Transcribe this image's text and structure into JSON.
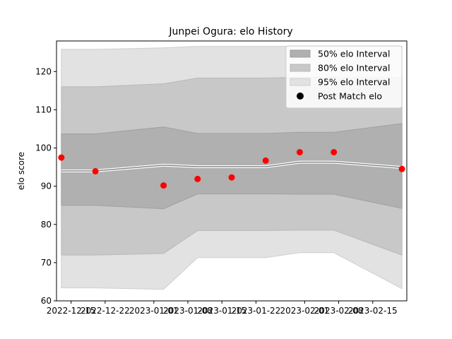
{
  "chart_data": {
    "type": "line",
    "title": "Junpei Ogura: elo History",
    "xlabel": "",
    "ylabel": "elo score",
    "x_ticks": [
      "2022-12-15",
      "2022-12-22",
      "2023-01-01",
      "2023-01-08",
      "2023-01-15",
      "2023-01-22",
      "2023-02-01",
      "2023-02-08",
      "2023-02-15"
    ],
    "x_tick_dates": [
      "2022-12-15",
      "2022-12-22",
      "2023-01-01",
      "2023-01-08",
      "2023-01-15",
      "2023-01-22",
      "2023-02-01",
      "2023-02-08",
      "2023-02-15"
    ],
    "xlim": [
      "2022-12-12",
      "2023-02-22"
    ],
    "ylim": [
      60,
      128
    ],
    "y_ticks": [
      60,
      70,
      80,
      90,
      100,
      110,
      120
    ],
    "grid": false,
    "legend_position": "top-right",
    "legend": [
      "50% elo Interval",
      "80% elo Interval",
      "95% elo Interval",
      "Post Match elo"
    ],
    "colors": {
      "band_50": "#b0b0b0",
      "band_80": "#c8c8c8",
      "band_95": "#e2e2e2",
      "mean_line": "#888888",
      "points": "#ff0000"
    },
    "x": [
      "2022-12-13",
      "2022-12-20",
      "2023-01-03",
      "2023-01-10",
      "2023-01-17",
      "2023-01-24",
      "2023-01-31",
      "2023-02-07",
      "2023-02-21"
    ],
    "mean": [
      94.0,
      94.0,
      95.5,
      95.1,
      95.1,
      95.1,
      96.3,
      96.3,
      94.9
    ],
    "band_50": {
      "lower": [
        85.0,
        85.0,
        84.1,
        88.0,
        88.0,
        88.0,
        87.9,
        87.9,
        84.2
      ],
      "upper": [
        103.7,
        103.7,
        105.5,
        103.8,
        103.8,
        103.8,
        104.1,
        104.1,
        106.4
      ]
    },
    "band_80": {
      "lower": [
        72.0,
        72.0,
        72.4,
        78.4,
        78.4,
        78.4,
        78.5,
        78.5,
        72.0
      ],
      "upper": [
        116.0,
        116.0,
        116.8,
        118.3,
        118.3,
        118.3,
        118.5,
        118.5,
        118.5
      ]
    },
    "band_95": {
      "lower": [
        63.4,
        63.4,
        63.0,
        71.3,
        71.3,
        71.3,
        72.6,
        72.6,
        63.2
      ],
      "upper": [
        125.8,
        125.8,
        126.2,
        126.6,
        126.6,
        126.6,
        126.6,
        126.6,
        126.6
      ]
    },
    "series": [
      {
        "name": "Post Match elo",
        "x": [
          "2022-12-13",
          "2022-12-20",
          "2023-01-03",
          "2023-01-10",
          "2023-01-17",
          "2023-01-24",
          "2023-01-31",
          "2023-02-07",
          "2023-02-21"
        ],
        "values": [
          97.5,
          93.9,
          90.2,
          91.9,
          92.3,
          96.7,
          98.9,
          98.9,
          94.5
        ]
      }
    ]
  }
}
